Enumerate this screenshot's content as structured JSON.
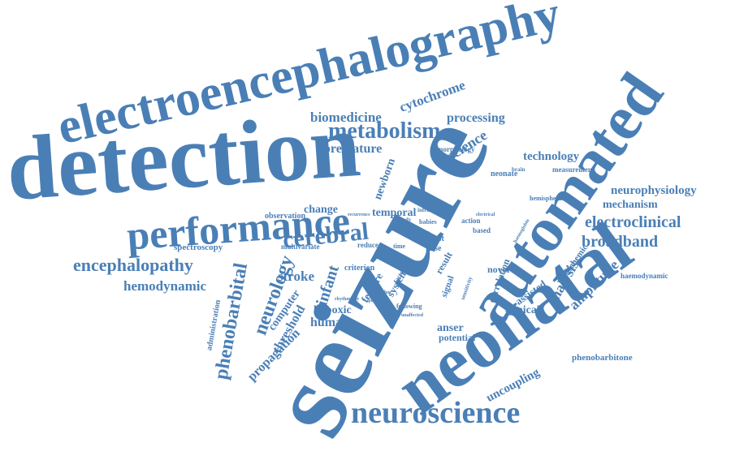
{
  "colors": {
    "word": "#4a7fb6",
    "background": "#ffffff"
  },
  "words": {
    "detection": "detection",
    "electroencephalography": "electroencephalography",
    "seizure": "seizure",
    "automated": "automated",
    "neonatal": "neonatal",
    "performance": "performance",
    "neuroscience": "neuroscience",
    "metabolism": "metabolism",
    "biomedicine": "biomedicine",
    "cytochrome": "cytochrome",
    "processing": "processing",
    "premature": "premature",
    "science": "science",
    "morphology": "morphology",
    "technology": "technology",
    "measurement": "measurement",
    "neonate": "neonate",
    "newborn": "newborn",
    "neurophysiology": "neurophysiology",
    "mechanism": "mechanism",
    "electroclinical": "electroclinical",
    "broadband": "broadband",
    "hemisphere": "hemisphere",
    "change": "change",
    "temporal": "temporal",
    "observation": "observation",
    "cerebral": "cerebral",
    "encephalopathy": "encephalopathy",
    "spectroscopy": "spectroscopy",
    "hemodynamic": "hemodynamic",
    "phenobarbital": "phenobarbital",
    "neurology": "neurology",
    "stroke": "stroke",
    "infant": "infant",
    "multivariate": "multivariate",
    "reduce": "reduce",
    "criterion": "criterion",
    "feature": "feature",
    "system": "system",
    "computer": "computer",
    "threshold": "threshold",
    "hypoxic": "hypoxic",
    "human": "human",
    "propagation": "propagation",
    "administration": "administration",
    "analysis": "analysis",
    "amplitude": "amplitude",
    "ischemic": "ischemic",
    "haemodynamic": "haemodynamic",
    "clinical": "clinical",
    "assisted": "assisted",
    "correlation": "correlation",
    "novel": "novel",
    "result": "result",
    "signal": "signal",
    "anser": "anser",
    "potential": "potential",
    "following": "following",
    "uncoupling": "uncoupling",
    "phenobarbitone": "phenobarbitone",
    "action": "action",
    "based": "based",
    "babies": "babies",
    "infrared": "infrared",
    "burst": "burst",
    "false": "false",
    "time": "time",
    "study": "study",
    "factor": "factor",
    "rhythmicity": "rhythmicity",
    "quantified": "quantified",
    "unaffected": "unaffected",
    "algorithm": "algorithm",
    "recurrence": "recurrence",
    "brain": "brain",
    "electrical": "electrical",
    "haemoglobin": "haemoglobin",
    "sensitivity": "sensitivity",
    "pairs": "pairs"
  }
}
